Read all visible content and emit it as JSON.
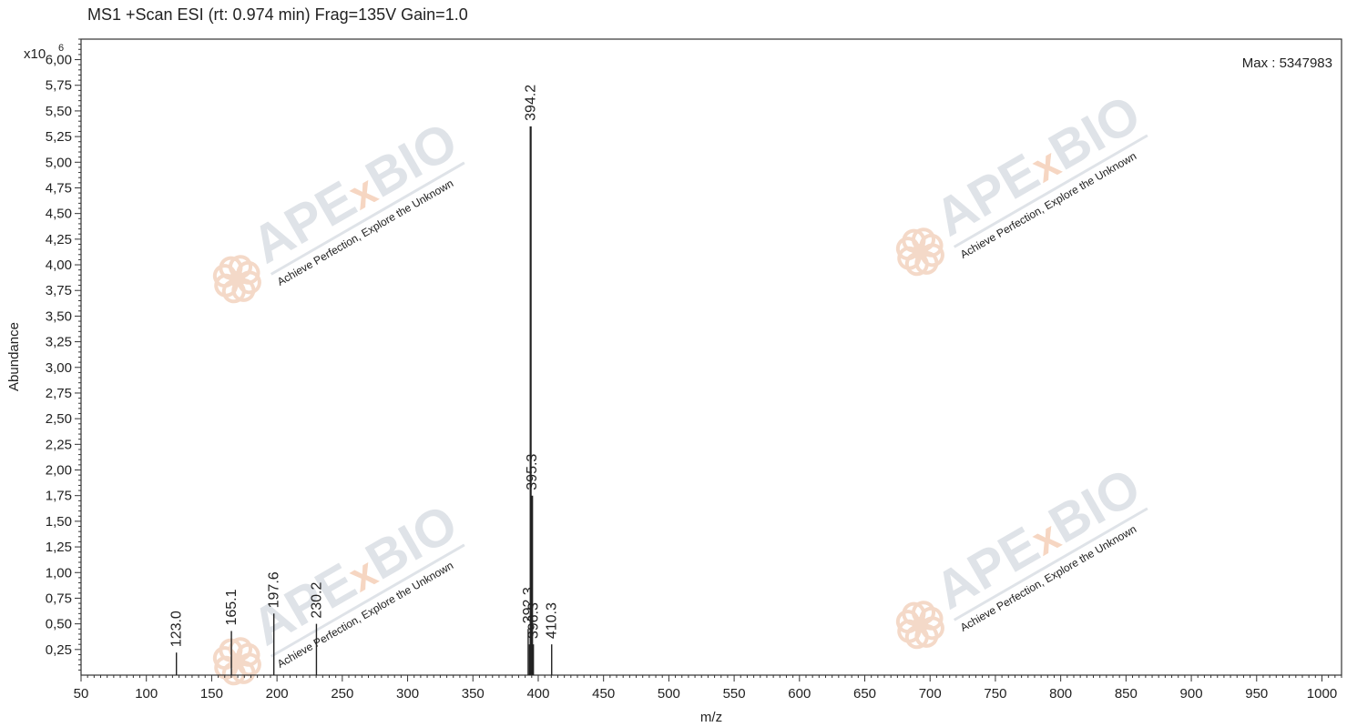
{
  "chart_data": {
    "type": "bar",
    "title": "MS1 +Scan ESI (rt: 0.974 min) Frag=135V Gain=1.0",
    "xlabel": "m/z",
    "ylabel": "Abundance",
    "y_multiplier": "x10",
    "y_exponent": "6",
    "annotation": "Max : 5347983",
    "xlim": [
      50,
      1015
    ],
    "ylim": [
      0,
      6.2
    ],
    "x_ticks": [
      50,
      100,
      150,
      200,
      250,
      300,
      350,
      400,
      450,
      500,
      550,
      600,
      650,
      700,
      750,
      800,
      850,
      900,
      950,
      1000
    ],
    "y_ticks": [
      "0,25",
      "0,50",
      "0,75",
      "1,00",
      "1,25",
      "1,50",
      "1,75",
      "2,00",
      "2,25",
      "2,50",
      "2,75",
      "3,00",
      "3,25",
      "3,50",
      "3,75",
      "4,00",
      "4,25",
      "4,50",
      "4,75",
      "5,00",
      "5,25",
      "5,50",
      "5,75",
      "6,00"
    ],
    "peaks": [
      {
        "mz": 123.0,
        "abundance": 0.22,
        "label": "123.0"
      },
      {
        "mz": 165.1,
        "abundance": 0.43,
        "label": "165.1"
      },
      {
        "mz": 197.6,
        "abundance": 0.6,
        "label": "197.6"
      },
      {
        "mz": 230.2,
        "abundance": 0.5,
        "label": "230.2"
      },
      {
        "mz": 392.3,
        "abundance": 0.45,
        "label": "392.3"
      },
      {
        "mz": 393.3,
        "abundance": 0.3,
        "label": ""
      },
      {
        "mz": 394.2,
        "abundance": 5.35,
        "label": "394.2"
      },
      {
        "mz": 395.3,
        "abundance": 1.75,
        "label": "395.3"
      },
      {
        "mz": 396.3,
        "abundance": 0.3,
        "label": "396.3"
      },
      {
        "mz": 410.3,
        "abundance": 0.3,
        "label": "410.3"
      }
    ],
    "grid": false,
    "colors": {
      "peak": "#222222",
      "axis": "#333333"
    }
  },
  "watermark": {
    "brand_left": "APE",
    "brand_x": "x",
    "brand_right": "BIO",
    "tagline": "Achieve Perfection, Explore the Unknown",
    "colors": {
      "text": "#dfe3e8",
      "accent": "#f6d6c2",
      "logo": "#f4d9c8"
    }
  }
}
